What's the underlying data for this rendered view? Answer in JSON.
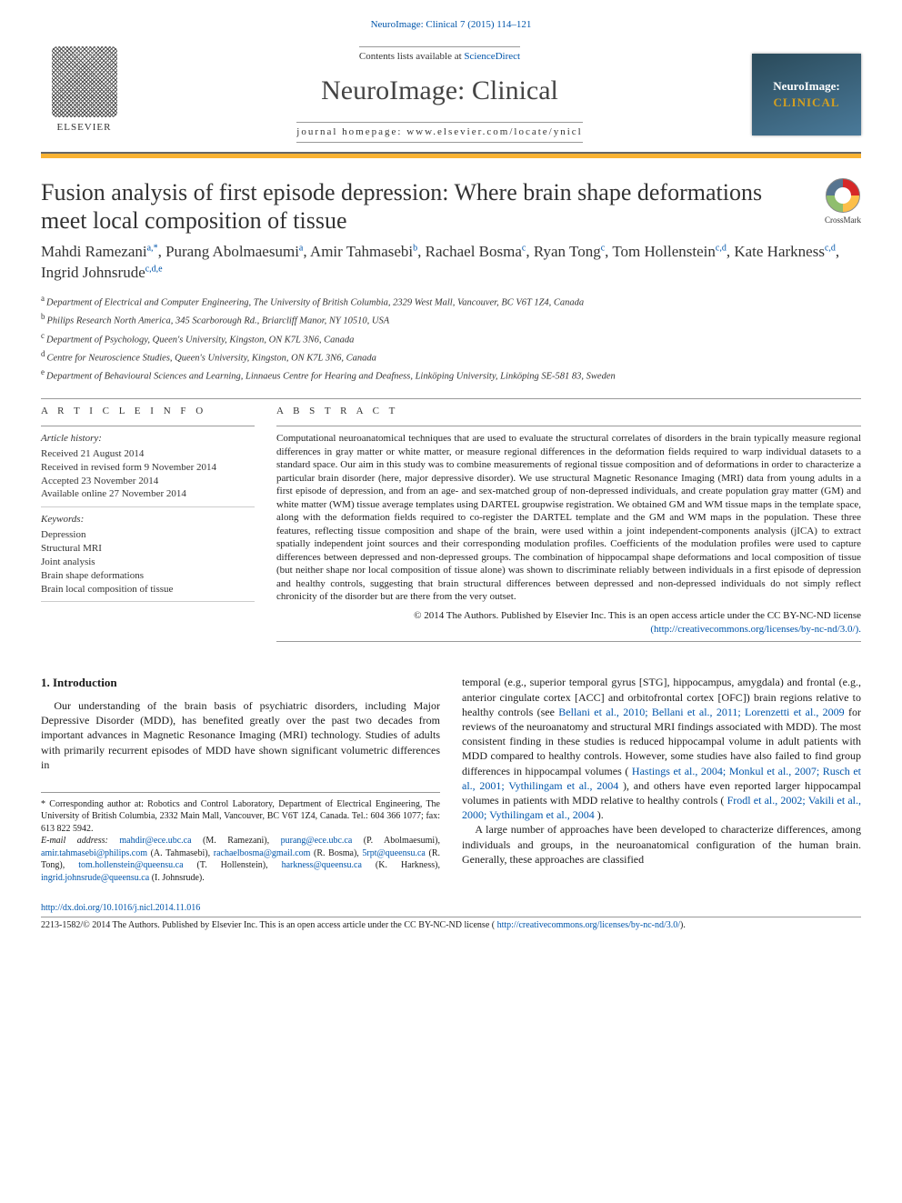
{
  "top_link": {
    "prefix": "NeuroImage: Clinical 7 (2015) 114–121",
    "url_text": "NeuroImage: Clinical 7 (2015) 114–121"
  },
  "header": {
    "contents_prefix": "Contents lists available at ",
    "contents_link": "ScienceDirect",
    "journal": "NeuroImage: Clinical",
    "homepage_prefix": "journal homepage: ",
    "homepage": "www.elsevier.com/locate/ynicl",
    "logo_left": "ELSEVIER",
    "logo_right_top": "NeuroImage:",
    "logo_right_bottom": "CLINICAL"
  },
  "crossmark": "CrossMark",
  "title": "Fusion analysis of first episode depression: Where brain shape deformations meet local composition of tissue",
  "authors_html": "Mahdi Ramezani<sup>a,</sup><sup class='star'>*</sup>, Purang Abolmaesumi<sup>a</sup>, Amir Tahmasebi<sup>b</sup>, Rachael Bosma<sup>c</sup>, Ryan Tong<sup>c</sup>, Tom Hollenstein<sup>c,d</sup>, Kate Harkness<sup>c,d</sup>, Ingrid Johnsrude<sup>c,d,e</sup>",
  "affiliations": [
    {
      "sup": "a",
      "text": "Department of Electrical and Computer Engineering, The University of British Columbia, 2329 West Mall, Vancouver, BC V6T 1Z4, Canada"
    },
    {
      "sup": "b",
      "text": "Philips Research North America, 345 Scarborough Rd., Briarcliff Manor, NY 10510, USA"
    },
    {
      "sup": "c",
      "text": "Department of Psychology, Queen's University, Kingston, ON K7L 3N6, Canada"
    },
    {
      "sup": "d",
      "text": "Centre for Neuroscience Studies, Queen's University, Kingston, ON K7L 3N6, Canada"
    },
    {
      "sup": "e",
      "text": "Department of Behavioural Sciences and Learning, Linnaeus Centre for Hearing and Deafness, Linköping University, Linköping SE-581 83, Sweden"
    }
  ],
  "article_info": {
    "label": "A R T I C L E   I N F O",
    "history_hdr": "Article history:",
    "history": [
      "Received 21 August 2014",
      "Received in revised form 9 November 2014",
      "Accepted 23 November 2014",
      "Available online 27 November 2014"
    ],
    "keywords_hdr": "Keywords:",
    "keywords": [
      "Depression",
      "Structural MRI",
      "Joint analysis",
      "Brain shape deformations",
      "Brain local composition of tissue"
    ]
  },
  "abstract": {
    "label": "A B S T R A C T",
    "text": "Computational neuroanatomical techniques that are used to evaluate the structural correlates of disorders in the brain typically measure regional differences in gray matter or white matter, or measure regional differences in the deformation fields required to warp individual datasets to a standard space. Our aim in this study was to combine measurements of regional tissue composition and of deformations in order to characterize a particular brain disorder (here, major depressive disorder). We use structural Magnetic Resonance Imaging (MRI) data from young adults in a first episode of depression, and from an age- and sex-matched group of non-depressed individuals, and create population gray matter (GM) and white matter (WM) tissue average templates using DARTEL groupwise registration. We obtained GM and WM tissue maps in the template space, along with the deformation fields required to co-register the DARTEL template and the GM and WM maps in the population. These three features, reflecting tissue composition and shape of the brain, were used within a joint independent-components analysis (jICA) to extract spatially independent joint sources and their corresponding modulation profiles. Coefficients of the modulation profiles were used to capture differences between depressed and non-depressed groups. The combination of hippocampal shape deformations and local composition of tissue (but neither shape nor local composition of tissue alone) was shown to discriminate reliably between individuals in a first episode of depression and healthy controls, suggesting that brain structural differences between depressed and non-depressed individuals do not simply reflect chronicity of the disorder but are there from the very outset.",
    "copyright": "© 2014 The Authors. Published by Elsevier Inc. This is an open access article under the CC BY-NC-ND license",
    "license_link": "(http://creativecommons.org/licenses/by-nc-nd/3.0/)."
  },
  "intro": {
    "heading": "1. Introduction",
    "p_left": "Our understanding of the brain basis of psychiatric disorders, including Major Depressive Disorder (MDD), has benefited greatly over the past two decades from important advances in Magnetic Resonance Imaging (MRI) technology. Studies of adults with primarily recurrent episodes of MDD have shown significant volumetric differences in",
    "p_right_1_pre": "temporal (e.g., superior temporal gyrus [STG], hippocampus, amygdala) and frontal (e.g., anterior cingulate cortex [ACC] and orbitofrontal cortex [OFC]) brain regions relative to healthy controls (see ",
    "p_right_1_links": "Bellani et al., 2010; Bellani et al., 2011; Lorenzetti et al., 2009",
    "p_right_1_post": " for reviews of the neuroanatomy and structural MRI findings associated with MDD). The most consistent finding in these studies is reduced hippocampal volume in adult patients with MDD compared to healthy controls. However, some studies have also failed to find group differences in hippocampal volumes (",
    "p_right_1_links2": "Hastings et al., 2004; Monkul et al., 2007; Rusch et al., 2001; Vythilingam et al., 2004",
    "p_right_1_post2": "), and others have even reported larger hippocampal volumes in patients with MDD relative to healthy controls (",
    "p_right_1_links3": "Frodl et al., 2002; Vakili et al., 2000; Vythilingam et al., 2004",
    "p_right_1_post3": ").",
    "p_right_2": "A large number of approaches have been developed to characterize differences, among individuals and groups, in the neuroanatomical configuration of the human brain. Generally, these approaches are classified"
  },
  "footnotes": {
    "corr_prefix": "* Corresponding author at: Robotics and Control Laboratory, Department of Electrical Engineering, The University of British Columbia, 2332 Main Mall, Vancouver, BC V6T 1Z4, Canada. Tel.: 604 366 1077; fax: 613 822 5942.",
    "email_label": "E-mail address: ",
    "emails": [
      {
        "addr": "mahdir@ece.ubc.ca",
        "who": "(M. Ramezani)"
      },
      {
        "addr": "purang@ece.ubc.ca",
        "who": "(P. Abolmaesumi)"
      },
      {
        "addr": "amir.tahmasebi@philips.com",
        "who": "(A. Tahmasebi)"
      },
      {
        "addr": "rachaelbosma@gmail.com",
        "who": "(R. Bosma)"
      },
      {
        "addr": "5rpt@queensu.ca",
        "who": "(R. Tong)"
      },
      {
        "addr": "tom.hollenstein@queensu.ca",
        "who": "(T. Hollenstein)"
      },
      {
        "addr": "harkness@queensu.ca",
        "who": "(K. Harkness)"
      },
      {
        "addr": "ingrid.johnsrude@queensu.ca",
        "who": "(I. Johnsrude)"
      }
    ]
  },
  "bottom": {
    "doi": "http://dx.doi.org/10.1016/j.nicl.2014.11.016",
    "issn_line": "2213-1582/© 2014 The Authors. Published by Elsevier Inc. This is an open access article under the CC BY-NC-ND license (",
    "license": "http://creativecommons.org/licenses/by-nc-nd/3.0/",
    "close": ")."
  },
  "colors": {
    "link": "#0055aa",
    "accent_bar": "#f9b233",
    "text": "#1a1a1a"
  }
}
